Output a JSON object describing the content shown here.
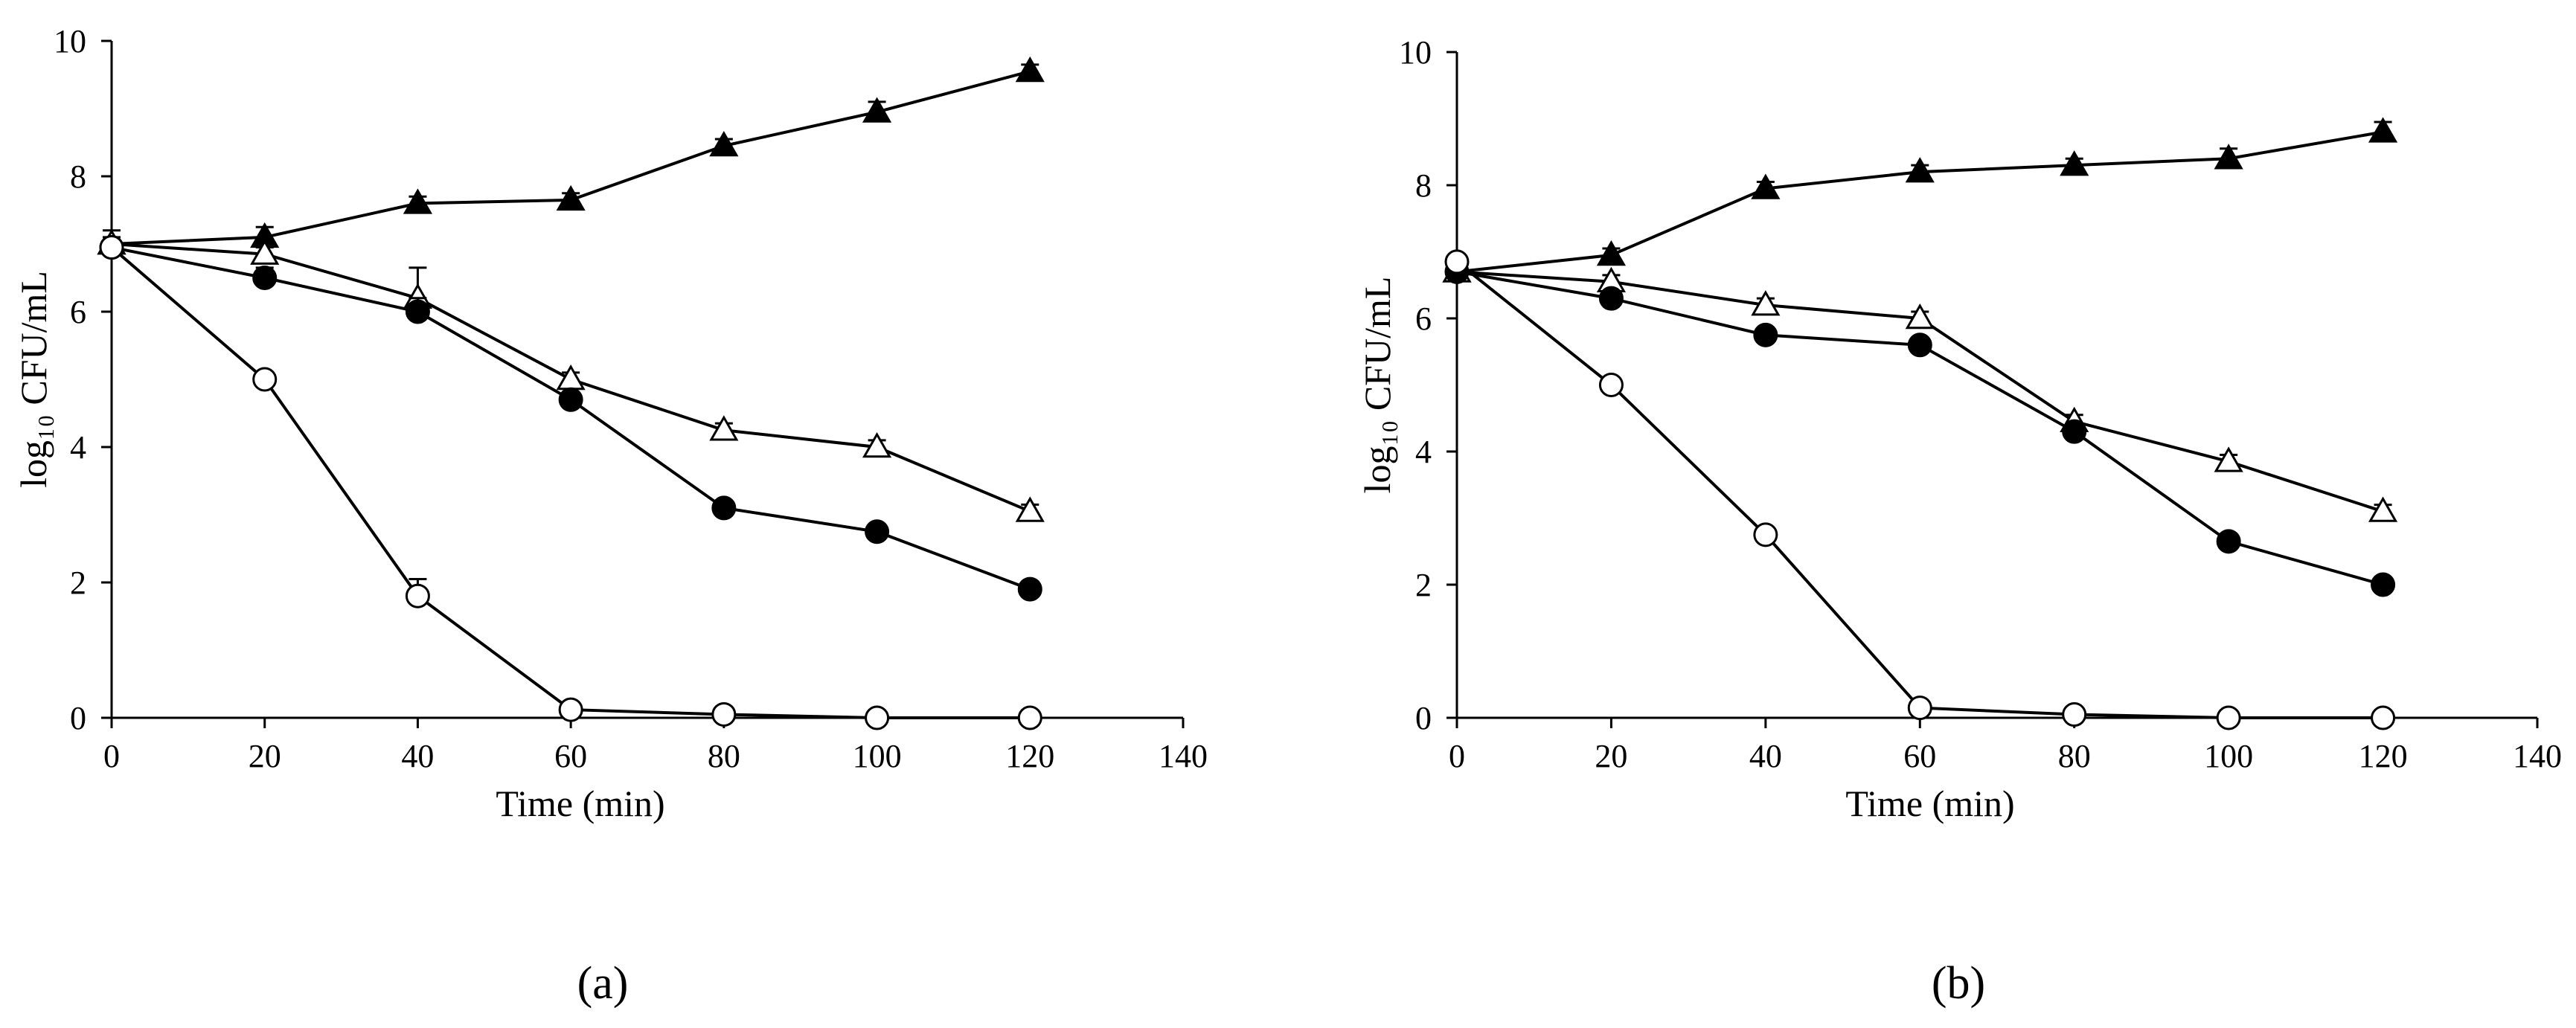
{
  "colors": {
    "ink": "#000000",
    "open_fill": "#ffffff"
  },
  "chart_data": [
    {
      "type": "line",
      "panel_label": "(a)",
      "xlabel": "Time (min)",
      "ylabel": "log₁₀ CFU/mL",
      "xlim": [
        0,
        140
      ],
      "ylim": [
        0,
        10
      ],
      "xticks": [
        "0",
        "20",
        "40",
        "60",
        "80",
        "100",
        "120",
        "140"
      ],
      "yticks": [
        "0",
        "2",
        "4",
        "6",
        "8",
        "10"
      ],
      "x": [
        0,
        20,
        40,
        60,
        80,
        100,
        120
      ],
      "series": [
        {
          "name": "filled-triangle",
          "marker": "triangle",
          "filled": true,
          "values": [
            7.0,
            7.1,
            7.6,
            7.65,
            8.45,
            8.95,
            9.55
          ],
          "errors": [
            0.2,
            0.15,
            0.1,
            0.1,
            0.1,
            0.15,
            0.1
          ]
        },
        {
          "name": "open-triangle",
          "marker": "triangle",
          "filled": false,
          "values": [
            7.0,
            6.85,
            6.2,
            5.0,
            4.25,
            4.0,
            3.05
          ],
          "errors": [
            0.1,
            0.1,
            0.45,
            0.1,
            0.1,
            0.1,
            0.1
          ]
        },
        {
          "name": "filled-circle",
          "marker": "circle",
          "filled": true,
          "values": [
            6.95,
            6.5,
            6.0,
            4.7,
            3.1,
            2.75,
            1.9
          ],
          "errors": [
            0.1,
            0.15,
            0.2,
            0.1,
            0.1,
            0.1,
            0.1
          ]
        },
        {
          "name": "open-circle",
          "marker": "circle",
          "filled": false,
          "values": [
            6.95,
            5.0,
            1.8,
            0.12,
            0.05,
            0.0,
            0.0
          ],
          "errors": [
            0.1,
            0.1,
            0.25,
            0.05,
            0.0,
            0.0,
            0.0
          ]
        }
      ]
    },
    {
      "type": "line",
      "panel_label": "(b)",
      "xlabel": "Time (min)",
      "ylabel": "log₁₀ CFU/mL",
      "xlim": [
        0,
        140
      ],
      "ylim": [
        0,
        10
      ],
      "xticks": [
        "0",
        "20",
        "40",
        "60",
        "80",
        "100",
        "120",
        "140"
      ],
      "yticks": [
        "0",
        "2",
        "4",
        "6",
        "8",
        "10"
      ],
      "x": [
        0,
        20,
        40,
        60,
        80,
        100,
        120
      ],
      "series": [
        {
          "name": "filled-triangle",
          "marker": "triangle",
          "filled": true,
          "values": [
            6.7,
            6.95,
            7.95,
            8.2,
            8.3,
            8.4,
            8.8
          ],
          "errors": [
            0.15,
            0.1,
            0.1,
            0.1,
            0.1,
            0.15,
            0.15
          ]
        },
        {
          "name": "open-triangle",
          "marker": "triangle",
          "filled": false,
          "values": [
            6.7,
            6.55,
            6.2,
            6.0,
            4.45,
            3.85,
            3.1
          ],
          "errors": [
            0.1,
            0.1,
            0.1,
            0.1,
            0.1,
            0.1,
            0.1
          ]
        },
        {
          "name": "filled-circle",
          "marker": "circle",
          "filled": true,
          "values": [
            6.7,
            6.3,
            5.75,
            5.6,
            4.3,
            2.65,
            2.0
          ],
          "errors": [
            0.15,
            0.1,
            0.1,
            0.1,
            0.1,
            0.1,
            0.1
          ]
        },
        {
          "name": "open-circle",
          "marker": "circle",
          "filled": false,
          "values": [
            6.85,
            5.0,
            2.75,
            0.15,
            0.05,
            0.0,
            0.0
          ],
          "errors": [
            0.1,
            0.1,
            0.1,
            0.05,
            0.0,
            0.0,
            0.0
          ]
        }
      ]
    }
  ]
}
